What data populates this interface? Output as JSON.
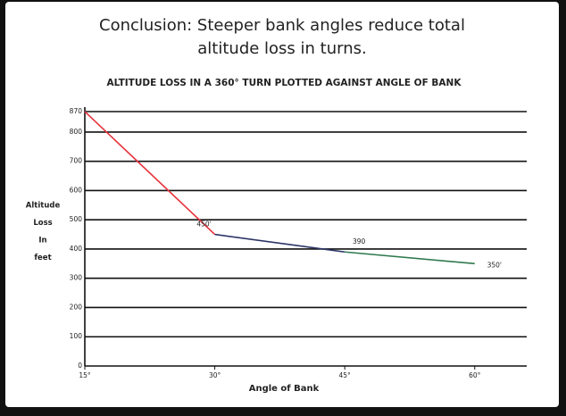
{
  "title": "Conclusion: Steeper bank angles reduce total altitude loss in turns.",
  "chart_data": {
    "type": "line",
    "title": "ALTITUDE LOSS IN A 360° TURN PLOTTED AGAINST ANGLE OF BANK",
    "xlabel": "Angle of Bank",
    "ylabel": [
      "Altitude",
      "Loss",
      "In",
      "feet"
    ],
    "x": [
      15,
      30,
      45,
      60
    ],
    "values": [
      870,
      450,
      390,
      350
    ],
    "value_labels": [
      null,
      "450'",
      "390",
      "350'"
    ],
    "segment_colors": [
      "#e8323c",
      "#2b3566",
      "#2f7a4f"
    ],
    "xlim": [
      15,
      66
    ],
    "xticks": [
      {
        "value": 15,
        "label": "15°"
      },
      {
        "value": 30,
        "label": "30°"
      },
      {
        "value": 45,
        "label": "45°"
      },
      {
        "value": 60,
        "label": "60°"
      }
    ],
    "ylim": [
      0,
      870
    ],
    "yticks": [
      0,
      100,
      200,
      300,
      400,
      500,
      600,
      700,
      800,
      870
    ],
    "grid": true
  }
}
